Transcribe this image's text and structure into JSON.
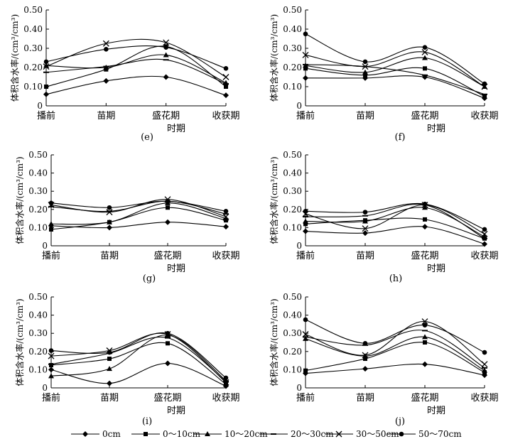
{
  "ylabel_text": "体积含水率/(cm³/cm³)",
  "xlabel": "时期",
  "categories": [
    "播前",
    "苗期",
    "盛花期",
    "收获期"
  ],
  "y_ticks": [
    "0",
    "0.10",
    "0.20",
    "0.30",
    "0.40",
    "0.50"
  ],
  "legend": [
    "0cm",
    "0～10cm",
    "10～20cm",
    "20～30cm",
    "30～50cm",
    "50～70cm"
  ],
  "chart_data": [
    {
      "type": "line",
      "panel_label": "(e)",
      "categories": [
        "播前",
        "苗期",
        "盛花期",
        "收获期"
      ],
      "ylim": [
        0,
        0.5
      ],
      "xlabel": "时期",
      "ylabel": "体积含水率/(cm³/cm³)",
      "series": [
        {
          "name": "0cm",
          "values": [
            0.06,
            0.13,
            0.15,
            0.055
          ]
        },
        {
          "name": "0～10cm",
          "values": [
            0.1,
            0.19,
            0.31,
            0.1
          ]
        },
        {
          "name": "10～20cm",
          "values": [
            0.21,
            0.2,
            0.265,
            0.12
          ]
        },
        {
          "name": "20～30cm",
          "values": [
            0.175,
            0.205,
            0.24,
            0.115
          ]
        },
        {
          "name": "30～50cm",
          "values": [
            0.205,
            0.325,
            0.33,
            0.15
          ]
        },
        {
          "name": "50～70cm",
          "values": [
            0.23,
            0.295,
            0.305,
            0.195
          ]
        }
      ]
    },
    {
      "type": "line",
      "panel_label": "(f)",
      "categories": [
        "播前",
        "苗期",
        "盛花期",
        "收获期"
      ],
      "ylim": [
        0,
        0.5
      ],
      "xlabel": "时期",
      "ylabel": "体积含水率/(cm³/cm³)",
      "series": [
        {
          "name": "0cm",
          "values": [
            0.145,
            0.145,
            0.15,
            0.04
          ]
        },
        {
          "name": "0～10cm",
          "values": [
            0.195,
            0.16,
            0.195,
            0.05
          ]
        },
        {
          "name": "10～20cm",
          "values": [
            0.21,
            0.175,
            0.25,
            0.1
          ]
        },
        {
          "name": "20～30cm",
          "values": [
            0.215,
            0.205,
            0.16,
            0.06
          ]
        },
        {
          "name": "30～50cm",
          "values": [
            0.265,
            0.205,
            0.28,
            0.1
          ]
        },
        {
          "name": "50～70cm",
          "values": [
            0.375,
            0.23,
            0.305,
            0.115
          ]
        }
      ]
    },
    {
      "type": "line",
      "panel_label": "(g)",
      "categories": [
        "播前",
        "苗期",
        "盛花期",
        "收获期"
      ],
      "ylim": [
        0,
        0.5
      ],
      "xlabel": "时期",
      "ylabel": "体积含水率/(cm³/cm³)",
      "series": [
        {
          "name": "0cm",
          "values": [
            0.11,
            0.1,
            0.13,
            0.105
          ]
        },
        {
          "name": "0～10cm",
          "values": [
            0.09,
            0.13,
            0.21,
            0.14
          ]
        },
        {
          "name": "10～20cm",
          "values": [
            0.12,
            0.13,
            0.235,
            0.15
          ]
        },
        {
          "name": "20～30cm",
          "values": [
            0.215,
            0.19,
            0.245,
            0.175
          ]
        },
        {
          "name": "30～50cm",
          "values": [
            0.225,
            0.185,
            0.255,
            0.16
          ]
        },
        {
          "name": "50～70cm",
          "values": [
            0.235,
            0.21,
            0.245,
            0.19
          ]
        }
      ]
    },
    {
      "type": "line",
      "panel_label": "(h)",
      "categories": [
        "播前",
        "苗期",
        "盛花期",
        "收获期"
      ],
      "ylim": [
        0,
        0.5
      ],
      "xlabel": "时期",
      "ylabel": "体积含水率/(cm³/cm³)",
      "series": [
        {
          "name": "0cm",
          "values": [
            0.08,
            0.07,
            0.105,
            0.01
          ]
        },
        {
          "name": "0～10cm",
          "values": [
            0.12,
            0.14,
            0.145,
            0.04
          ]
        },
        {
          "name": "10～20cm",
          "values": [
            0.135,
            0.135,
            0.21,
            0.05
          ]
        },
        {
          "name": "20～30cm",
          "values": [
            0.16,
            0.165,
            0.225,
            0.04
          ]
        },
        {
          "name": "30～50cm",
          "values": [
            0.175,
            0.095,
            0.225,
            0.065
          ]
        },
        {
          "name": "50～70cm",
          "values": [
            0.19,
            0.185,
            0.23,
            0.09
          ]
        }
      ]
    },
    {
      "type": "line",
      "panel_label": "(i)",
      "categories": [
        "播前",
        "苗期",
        "盛花期",
        "收获期"
      ],
      "ylim": [
        0,
        0.5
      ],
      "xlabel": "时期",
      "ylabel": "体积含水率/(cm³/cm³)",
      "series": [
        {
          "name": "0cm",
          "values": [
            0.1,
            0.025,
            0.135,
            0.01
          ]
        },
        {
          "name": "0～10cm",
          "values": [
            0.125,
            0.16,
            0.245,
            0.02
          ]
        },
        {
          "name": "10～20cm",
          "values": [
            0.065,
            0.105,
            0.29,
            0.04
          ]
        },
        {
          "name": "20～30cm",
          "values": [
            0.13,
            0.19,
            0.275,
            0.035
          ]
        },
        {
          "name": "30～50cm",
          "values": [
            0.175,
            0.205,
            0.295,
            0.03
          ]
        },
        {
          "name": "50～70cm",
          "values": [
            0.205,
            0.195,
            0.3,
            0.055
          ]
        }
      ]
    },
    {
      "type": "line",
      "panel_label": "(j)",
      "categories": [
        "播前",
        "苗期",
        "盛花期",
        "收获期"
      ],
      "ylim": [
        0,
        0.5
      ],
      "xlabel": "时期",
      "ylabel": "体积含水率/(cm³/cm³)",
      "series": [
        {
          "name": "0cm",
          "values": [
            0.08,
            0.105,
            0.13,
            0.07
          ]
        },
        {
          "name": "0～10cm",
          "values": [
            0.095,
            0.16,
            0.25,
            0.085
          ]
        },
        {
          "name": "10～20cm",
          "values": [
            0.27,
            0.175,
            0.28,
            0.095
          ]
        },
        {
          "name": "20～30cm",
          "values": [
            0.28,
            0.235,
            0.315,
            0.11
          ]
        },
        {
          "name": "30～50cm",
          "values": [
            0.295,
            0.18,
            0.365,
            0.13
          ]
        },
        {
          "name": "50～70cm",
          "values": [
            0.375,
            0.245,
            0.345,
            0.195
          ]
        }
      ]
    }
  ]
}
